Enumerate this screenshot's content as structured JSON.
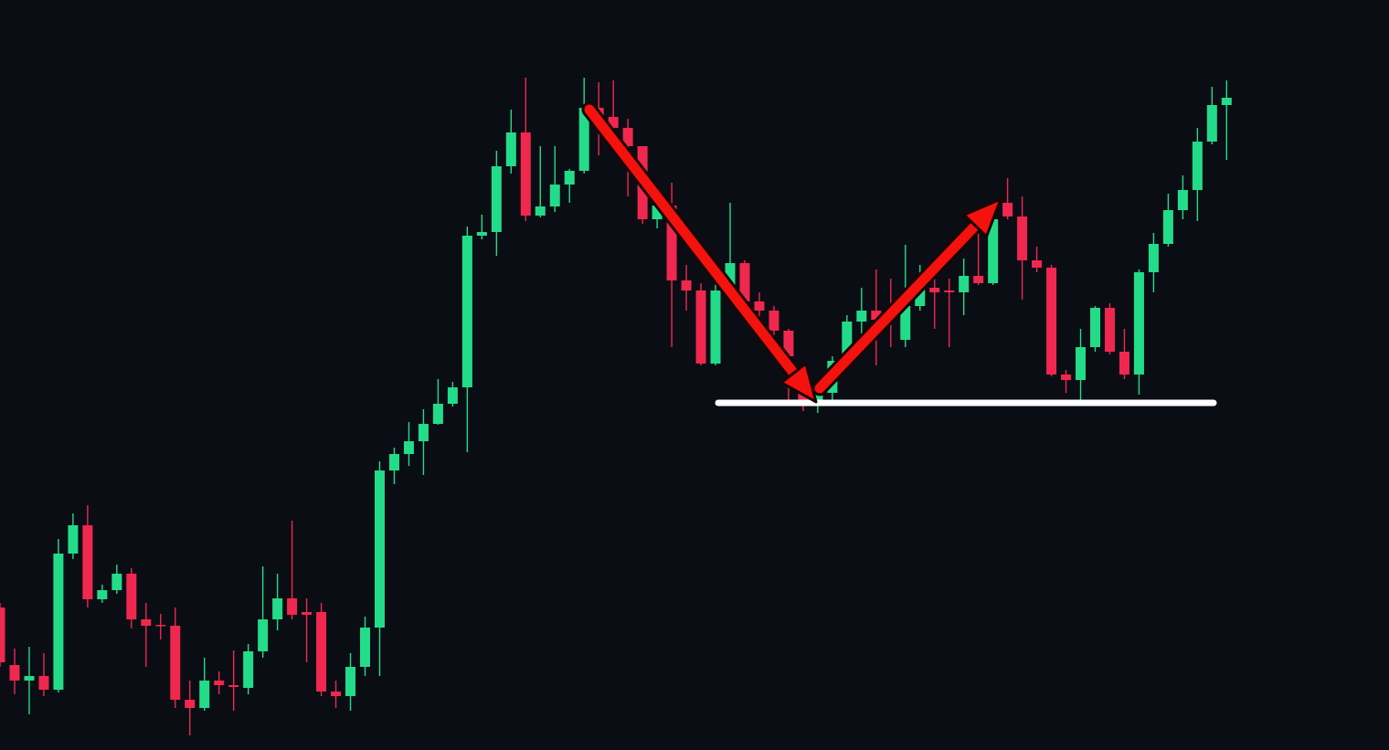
{
  "chart_data": {
    "type": "candlestick",
    "up_color": "#23dc8a",
    "down_color": "#f0284f",
    "ylim": [
      0,
      821
    ],
    "open": [
      156,
      93,
      76,
      81,
      66,
      215,
      246,
      165,
      175,
      193,
      143,
      137,
      136,
      55,
      46,
      76,
      71,
      68,
      108,
      143,
      166,
      151,
      151,
      64,
      59,
      91,
      134,
      306,
      324,
      338,
      357,
      379,
      397,
      563,
      567,
      639,
      676,
      585,
      595,
      619,
      634,
      703,
      693,
      681,
      661,
      581,
      596,
      514,
      503,
      423,
      503,
      533,
      491,
      481,
      459,
      401,
      383,
      391,
      426,
      469,
      481,
      476,
      449,
      486,
      506,
      503,
      501,
      519,
      511,
      599,
      584,
      536,
      528,
      411,
      405,
      441,
      484,
      436,
      411,
      523,
      554,
      591,
      613,
      666,
      706
    ],
    "high": [
      161,
      111,
      113,
      106,
      231,
      259,
      268,
      181,
      203,
      199,
      161,
      149,
      156,
      76,
      101,
      86,
      109,
      116,
      201,
      193,
      251,
      166,
      161,
      76,
      106,
      146,
      316,
      331,
      359,
      373,
      406,
      403,
      573,
      586,
      656,
      701,
      736,
      661,
      661,
      636,
      736,
      731,
      733,
      691,
      661,
      611,
      621,
      531,
      511,
      516,
      599,
      536,
      501,
      486,
      461,
      411,
      401,
      431,
      476,
      506,
      526,
      516,
      553,
      531,
      521,
      516,
      538,
      576,
      589,
      626,
      606,
      551,
      531,
      416,
      461,
      486,
      489,
      461,
      526,
      566,
      609,
      629,
      681,
      726,
      733
    ],
    "low": [
      91,
      61,
      39,
      59,
      63,
      209,
      156,
      161,
      171,
      133,
      91,
      121,
      46,
      16,
      43,
      61,
      43,
      61,
      101,
      131,
      143,
      96,
      59,
      46,
      43,
      81,
      81,
      291,
      311,
      301,
      356,
      376,
      326,
      559,
      541,
      631,
      579,
      583,
      589,
      599,
      631,
      651,
      661,
      606,
      576,
      571,
      441,
      481,
      421,
      421,
      501,
      486,
      463,
      451,
      381,
      371,
      369,
      381,
      421,
      441,
      421,
      441,
      441,
      481,
      461,
      441,
      476,
      509,
      509,
      581,
      493,
      523,
      409,
      391,
      383,
      436,
      433,
      406,
      389,
      501,
      551,
      581,
      579,
      663,
      646
    ],
    "close": [
      96,
      76,
      81,
      66,
      215,
      246,
      165,
      175,
      193,
      143,
      136,
      136,
      55,
      46,
      76,
      71,
      69,
      108,
      143,
      166,
      148,
      148,
      64,
      59,
      91,
      134,
      306,
      324,
      338,
      357,
      379,
      397,
      563,
      567,
      639,
      676,
      585,
      595,
      619,
      634,
      703,
      693,
      681,
      661,
      581,
      596,
      514,
      503,
      423,
      503,
      533,
      491,
      481,
      459,
      431,
      383,
      391,
      426,
      469,
      481,
      471,
      471,
      486,
      506,
      501,
      501,
      519,
      511,
      581,
      584,
      536,
      528,
      411,
      405,
      441,
      484,
      436,
      411,
      523,
      554,
      591,
      613,
      666,
      706,
      714
    ],
    "support_level": 380
  }
}
